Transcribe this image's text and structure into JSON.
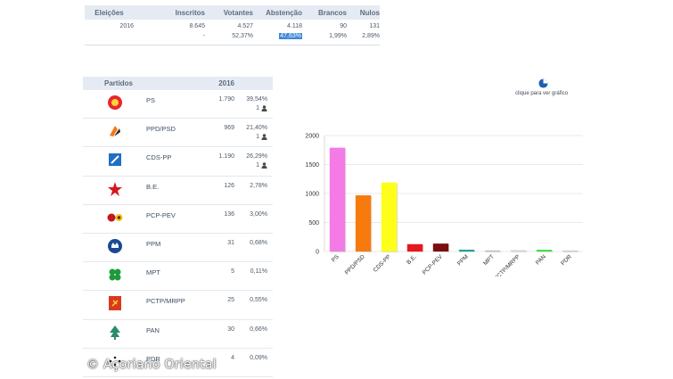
{
  "summary": {
    "headers": [
      "Eleições",
      "Inscritos",
      "Votantes",
      "Abstenção",
      "Brancos",
      "Nulos"
    ],
    "row1": [
      "2016",
      "8.645",
      "4.527",
      "4.118",
      "90",
      "131"
    ],
    "row2": [
      "",
      "-",
      "52,37%",
      "47,63%",
      "1,99%",
      "2,89%"
    ]
  },
  "parties_table": {
    "header_party": "Partidos",
    "header_year": "2016",
    "rows": [
      {
        "name": "PS",
        "votes": "1.790",
        "pct": "39,54%",
        "seats": "1",
        "logo": "ps-fist-rose-icon",
        "color": "#e8262d"
      },
      {
        "name": "PPD/PSD",
        "votes": "969",
        "pct": "21,40%",
        "seats": "1",
        "logo": "psd-arrows-icon",
        "color": "#f27a1a"
      },
      {
        "name": "CDS-PP",
        "votes": "1.190",
        "pct": "26,29%",
        "seats": "1",
        "logo": "cds-square-icon",
        "color": "#1f6fc5"
      },
      {
        "name": "B.E.",
        "votes": "126",
        "pct": "2,78%",
        "seats": "",
        "logo": "be-star-icon",
        "color": "#d6151e"
      },
      {
        "name": "PCP-PEV",
        "votes": "136",
        "pct": "3,00%",
        "seats": "",
        "logo": "pcp-pev-hammer-sunflower-icon",
        "color": "#c4161c"
      },
      {
        "name": "PPM",
        "votes": "31",
        "pct": "0,68%",
        "seats": "",
        "logo": "ppm-crown-icon",
        "color": "#1a4a94"
      },
      {
        "name": "MPT",
        "votes": "5",
        "pct": "0,11%",
        "seats": "",
        "logo": "mpt-clover-icon",
        "color": "#1e9a3c"
      },
      {
        "name": "PCTP/MRPP",
        "votes": "25",
        "pct": "0,55%",
        "seats": "",
        "logo": "pctp-mrpp-flag-icon",
        "color": "#d83a1f"
      },
      {
        "name": "PAN",
        "votes": "30",
        "pct": "0,66%",
        "seats": "",
        "logo": "pan-tree-icon",
        "color": "#2c8a6e"
      },
      {
        "name": "PDR",
        "votes": "4",
        "pct": "0,09%",
        "seats": "",
        "logo": "pdr-stars-icon",
        "color": "#222222"
      }
    ]
  },
  "chart_link_text": "clique para ver gráfico",
  "watermark": "© Açoriano Oriental",
  "chart_data": {
    "type": "bar",
    "categories": [
      "PS",
      "PPD/PSD",
      "CDS-PP",
      "B.E.",
      "PCP-PEV",
      "PPM",
      "MPT",
      "PCTP/MRPP",
      "PAN",
      "PDR"
    ],
    "values": [
      1790,
      969,
      1190,
      126,
      136,
      31,
      5,
      25,
      30,
      4
    ],
    "colors": [
      "#f47ae6",
      "#f77a0f",
      "#fdff1a",
      "#e8161d",
      "#7a0e10",
      "#1fa59a",
      "#bfbfbf",
      "#d8d8d8",
      "#3ee33e",
      "#d0d0d0"
    ],
    "ylim": [
      0,
      2000
    ],
    "yticks": [
      "0",
      "500",
      "1000",
      "1500",
      "2000"
    ],
    "grid": true
  }
}
